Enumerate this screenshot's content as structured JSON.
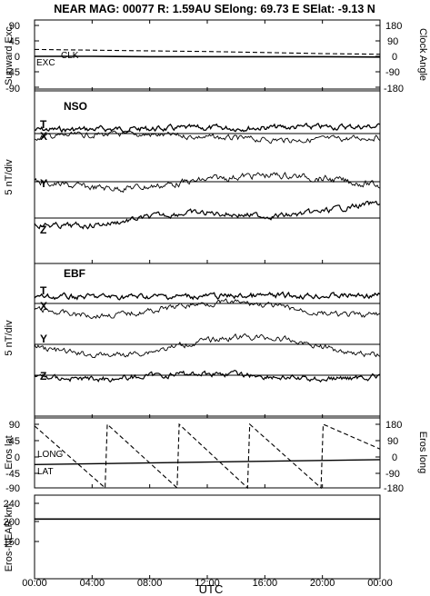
{
  "header": {
    "title": "NEAR MAG: 00077  R: 1.59AU  SElong:   69.73 E  SElat:   -9.13 N"
  },
  "panel1": {
    "left_label": "Sunward Exc.",
    "right_label": "Clock Angle",
    "left_ticks": [
      "90",
      "45",
      "0",
      "-45",
      "-90"
    ],
    "right_ticks": [
      "180",
      "90",
      "0",
      "-90",
      "-180"
    ],
    "trace_labels": [
      "CLK",
      "EXC"
    ]
  },
  "panel2": {
    "name": "NSO",
    "ylabel": "5 nT/div",
    "trace_labels": [
      "T",
      "X",
      "Y",
      "Z"
    ]
  },
  "panel3": {
    "name": "EBF",
    "ylabel": "5 nT/div",
    "trace_labels": [
      "T",
      "X",
      "Y",
      "Z"
    ]
  },
  "panel4": {
    "left_label": "Eros lat",
    "right_label": "Eros long",
    "left_ticks": [
      "90",
      "45",
      "0",
      "-45",
      "-90"
    ],
    "right_ticks": [
      "180",
      "90",
      "0",
      "-90",
      "-180"
    ],
    "trace_labels": [
      "LONG",
      "LAT"
    ]
  },
  "panel5": {
    "left_label": "Eros-NEAR km",
    "left_ticks": [
      "240",
      "200",
      "150"
    ]
  },
  "xaxis": {
    "label": "UTC",
    "ticks": [
      "00:00",
      "04:00",
      "08:00",
      "12:00",
      "16:00",
      "20:00",
      "00:00"
    ]
  },
  "chart_data": [
    {
      "type": "line",
      "title": "",
      "xlabel": "UTC",
      "x_hours_range": [
        0,
        24
      ],
      "ylabel": "Sunward Exc.",
      "ylabel_right": "Clock Angle",
      "ylim": [
        -90,
        90
      ],
      "ylim_right": [
        -180,
        180
      ],
      "series": [
        {
          "name": "CLK",
          "style": "dashed",
          "axis": "right",
          "x": [
            0,
            4,
            8,
            12,
            16,
            20,
            24
          ],
          "values": [
            40,
            36,
            32,
            28,
            22,
            16,
            12
          ]
        },
        {
          "name": "EXC",
          "style": "solid",
          "axis": "left",
          "x": [
            0,
            4,
            8,
            12,
            16,
            20,
            24
          ],
          "values": [
            0,
            0,
            -1,
            -1,
            -1,
            -1,
            -2
          ]
        }
      ]
    },
    {
      "type": "line",
      "title": "NSO",
      "ylabel": "5 nT/div",
      "series": [
        {
          "name": "T"
        },
        {
          "name": "X"
        },
        {
          "name": "Y"
        },
        {
          "name": "Z"
        }
      ]
    },
    {
      "type": "line",
      "title": "EBF",
      "ylabel": "5 nT/div",
      "series": [
        {
          "name": "T"
        },
        {
          "name": "X"
        },
        {
          "name": "Y"
        },
        {
          "name": "Z"
        }
      ]
    },
    {
      "type": "line",
      "title": "",
      "ylabel": "Eros lat",
      "ylabel_right": "Eros long",
      "ylim": [
        -90,
        90
      ],
      "ylim_right": [
        -180,
        180
      ],
      "series": [
        {
          "name": "LONG",
          "style": "dashed",
          "axis": "right",
          "x": [
            0,
            4.9,
            5.05,
            9.9,
            10.05,
            14.8,
            14.95,
            19.9,
            20.05,
            24
          ],
          "values": [
            171,
            -180,
            180,
            -180,
            180,
            -180,
            180,
            -180,
            180,
            40
          ]
        },
        {
          "name": "LAT",
          "style": "solid",
          "axis": "left",
          "x": [
            0,
            24
          ],
          "values": [
            -24,
            -10
          ]
        }
      ]
    },
    {
      "type": "line",
      "title": "",
      "ylabel": "Eros-NEAR km",
      "ylim": [
        100,
        260
      ],
      "series": [
        {
          "name": "",
          "x": [
            0,
            24
          ],
          "values": [
            203,
            203
          ]
        }
      ]
    }
  ]
}
